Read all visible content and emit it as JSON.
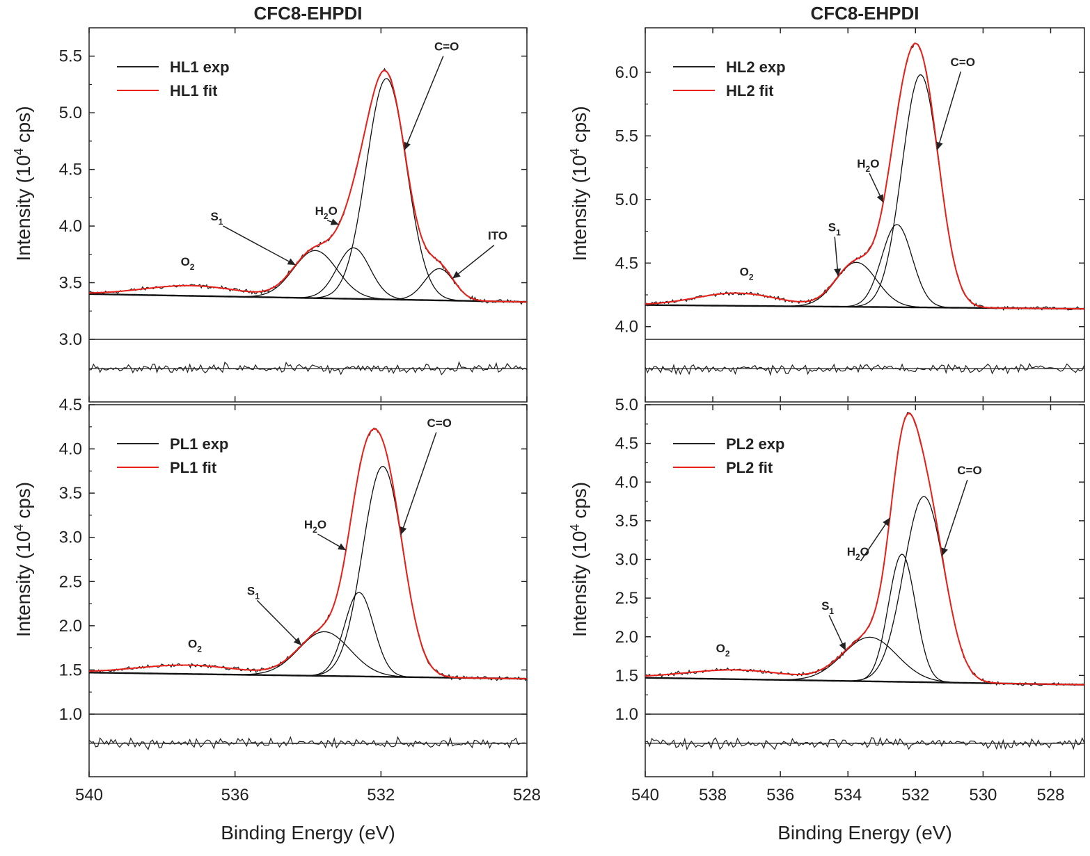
{
  "colors": {
    "experimental": "#222222",
    "fit": "#e8201a",
    "components": "#111111"
  },
  "chart_data": [
    {
      "type": "line",
      "title": "CFC8-EHPDI",
      "ylabel": "Intensity (10^4 cps)",
      "xlabel": "",
      "xlim": [
        540,
        528
      ],
      "ylim": [
        3.0,
        5.75
      ],
      "x_reversed": true,
      "x_ticks": [
        540,
        536,
        532,
        528
      ],
      "y_ticks": [
        3.0,
        3.5,
        4.0,
        4.5,
        5.0,
        5.5
      ],
      "legend": [
        "HL1 exp",
        "HL1 fit"
      ],
      "legend_placement": "top-left",
      "baseline": [
        [
          540,
          3.4
        ],
        [
          528,
          3.33
        ]
      ],
      "background": {
        "center": 537.2,
        "height": 0.09,
        "sigma": 1.3
      },
      "peaks": [
        {
          "label": "C=O",
          "center": 531.85,
          "height": 1.95,
          "sigma": 0.55,
          "label_x": 530.2,
          "label_y": 5.55
        },
        {
          "label": "H2O",
          "center": 532.75,
          "height": 0.45,
          "sigma": 0.45,
          "label_x": 533.5,
          "label_y": 4.1
        },
        {
          "label": "S1",
          "center": 533.8,
          "height": 0.42,
          "sigma": 0.6,
          "label_x": 536.5,
          "label_y": 4.05
        },
        {
          "label": "ITO",
          "center": 530.4,
          "height": 0.28,
          "sigma": 0.4,
          "label_x": 528.8,
          "label_y": 3.88
        },
        {
          "label": "O2",
          "center": 537.2,
          "height": 0.0,
          "sigma": 1.0,
          "label_x": 537.3,
          "label_y": 3.65
        }
      ],
      "residual": true
    },
    {
      "type": "line",
      "title": "CFC8-EHPDI",
      "ylabel": "Intensity (10^4 cps)",
      "xlabel": "",
      "xlim": [
        540,
        527
      ],
      "ylim": [
        3.9,
        6.35
      ],
      "x_reversed": true,
      "x_ticks": [
        540,
        538,
        536,
        534,
        532,
        530,
        528
      ],
      "y_ticks": [
        4.0,
        4.5,
        5.0,
        5.5,
        6.0
      ],
      "legend": [
        "HL2 exp",
        "HL2 fit"
      ],
      "legend_placement": "top-left",
      "baseline": [
        [
          540,
          4.17
        ],
        [
          527,
          4.14
        ]
      ],
      "background": {
        "center": 537.3,
        "height": 0.1,
        "sigma": 1.2
      },
      "peaks": [
        {
          "label": "C=O",
          "center": 531.85,
          "height": 1.83,
          "sigma": 0.55,
          "label_x": 530.6,
          "label_y": 6.05
        },
        {
          "label": "H2O",
          "center": 532.55,
          "height": 0.65,
          "sigma": 0.45,
          "label_x": 533.4,
          "label_y": 5.25
        },
        {
          "label": "S1",
          "center": 533.75,
          "height": 0.35,
          "sigma": 0.6,
          "label_x": 534.4,
          "label_y": 4.75
        },
        {
          "label": "O2",
          "center": 537.3,
          "height": 0.0,
          "sigma": 1.0,
          "label_x": 537.0,
          "label_y": 4.4
        }
      ],
      "residual": true
    },
    {
      "type": "line",
      "title": "",
      "ylabel": "Intensity (10^4 cps)",
      "xlabel": "Binding Energy (eV)",
      "xlim": [
        540,
        528
      ],
      "ylim": [
        1.0,
        4.5
      ],
      "x_reversed": true,
      "x_ticks": [
        540,
        536,
        532,
        528
      ],
      "y_ticks": [
        1.0,
        1.5,
        2.0,
        2.5,
        3.0,
        3.5,
        4.0,
        4.5
      ],
      "legend": [
        "PL1 exp",
        "PL1 fit"
      ],
      "legend_placement": "top-left",
      "baseline": [
        [
          540,
          1.47
        ],
        [
          528,
          1.4
        ]
      ],
      "background": {
        "center": 537.3,
        "height": 0.1,
        "sigma": 1.4
      },
      "peaks": [
        {
          "label": "C=O",
          "center": 531.95,
          "height": 2.38,
          "sigma": 0.55,
          "label_x": 530.4,
          "label_y": 4.25
        },
        {
          "label": "H2O",
          "center": 532.6,
          "height": 0.95,
          "sigma": 0.4,
          "label_x": 533.8,
          "label_y": 3.1
        },
        {
          "label": "S1",
          "center": 533.55,
          "height": 0.5,
          "sigma": 0.7,
          "label_x": 535.5,
          "label_y": 2.35
        },
        {
          "label": "O2",
          "center": 537.3,
          "height": 0.0,
          "sigma": 1.0,
          "label_x": 537.1,
          "label_y": 1.75
        }
      ],
      "residual": true
    },
    {
      "type": "line",
      "title": "",
      "ylabel": "Intensity (10^4 cps)",
      "xlabel": "Binding Energy (eV)",
      "xlim": [
        540,
        527
      ],
      "ylim": [
        1.0,
        5.0
      ],
      "x_reversed": true,
      "x_ticks": [
        540,
        538,
        536,
        534,
        532,
        530,
        528
      ],
      "y_ticks": [
        1.0,
        1.5,
        2.0,
        2.5,
        3.0,
        3.5,
        4.0,
        4.5,
        5.0
      ],
      "legend": [
        "PL2 exp",
        "PL2 fit"
      ],
      "legend_placement": "top-left",
      "baseline": [
        [
          540,
          1.47
        ],
        [
          527,
          1.38
        ]
      ],
      "background": {
        "center": 537.3,
        "height": 0.12,
        "sigma": 1.5
      },
      "peaks": [
        {
          "label": "C=O",
          "center": 531.75,
          "height": 2.4,
          "sigma": 0.6,
          "label_x": 530.4,
          "label_y": 4.1
        },
        {
          "label": "H2O",
          "center": 532.4,
          "height": 1.65,
          "sigma": 0.4,
          "label_x": 533.7,
          "label_y": 3.05
        },
        {
          "label": "S1",
          "center": 533.35,
          "height": 0.57,
          "sigma": 0.8,
          "label_x": 534.6,
          "label_y": 2.35
        },
        {
          "label": "O2",
          "center": 537.3,
          "height": 0.0,
          "sigma": 1.0,
          "label_x": 537.7,
          "label_y": 1.8
        }
      ],
      "residual": true
    }
  ]
}
